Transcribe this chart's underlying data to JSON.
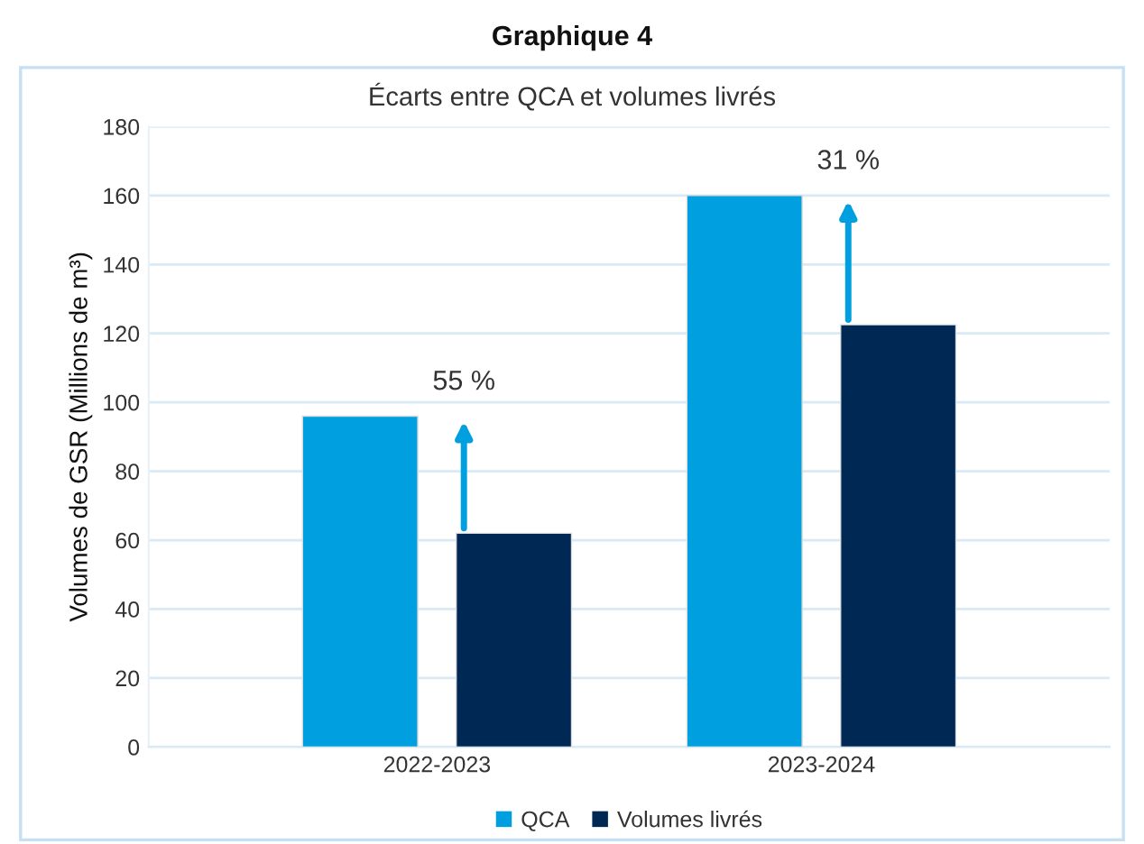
{
  "chart_data": {
    "type": "bar",
    "title": "Graphique 4",
    "subtitle": "Écarts entre QCA et volumes livrés",
    "ylabel": "Volumes de GSR (Millions de m³)",
    "categories": [
      "2022-2023",
      "2023-2024"
    ],
    "series": [
      {
        "name": "QCA",
        "color": "#009fdf",
        "values": [
          96,
          160
        ]
      },
      {
        "name": "Volumes livrés",
        "color": "#002855",
        "values": [
          62,
          122.5
        ]
      }
    ],
    "ylim": [
      0,
      180
    ],
    "yticks": [
      0,
      20,
      40,
      60,
      80,
      100,
      120,
      140,
      160,
      180
    ],
    "grid": "y",
    "legend": "bottom",
    "annotations": [
      "55 %",
      "31 %"
    ]
  }
}
